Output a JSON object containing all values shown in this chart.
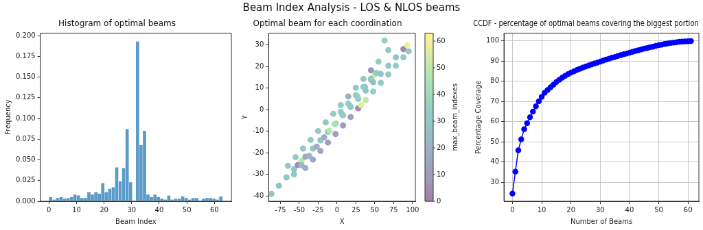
{
  "chart_data": [
    {
      "type": "histogram",
      "title": "Histogram of optimal beams",
      "xlabel": "Beam Index",
      "ylabel": "Frequency",
      "annotations": [
        "Beam Index Analysis - LOS & NLOS beams"
      ],
      "color": "#5a9bc9",
      "bins": [
        0,
        1.26,
        2.52,
        3.78,
        5.04,
        6.3,
        7.56,
        8.82,
        10.08,
        11.34,
        12.6,
        13.86,
        15.12,
        16.38,
        17.64,
        18.9,
        20.16,
        21.42,
        22.68,
        23.94,
        25.2,
        26.46,
        27.72,
        28.98,
        30.24,
        31.5,
        32.76,
        34.02,
        35.28,
        36.54,
        37.8,
        39.06,
        40.32,
        41.58,
        42.84,
        44.1,
        45.36,
        46.62,
        47.88,
        49.14,
        50.4,
        51.66,
        52.92,
        54.18,
        55.44,
        56.7,
        57.96,
        59.22,
        60.48,
        61.74,
        63
      ],
      "values": [
        0.005,
        0.002,
        0.004,
        0.005,
        0.003,
        0.004,
        0.005,
        0.008,
        0.007,
        0.004,
        0.004,
        0.011,
        0.008,
        0.011,
        0.009,
        0.022,
        0.011,
        0.015,
        0.017,
        0.041,
        0.024,
        0.04,
        0.087,
        0.023,
        0,
        0.193,
        0.068,
        0.085,
        0.008,
        0.005,
        0.008,
        0.005,
        0.003,
        0.002,
        0.007,
        0.002,
        0.003,
        0.003,
        0.006,
        0.004,
        0.002,
        0.004,
        0.004,
        0.001,
        0.003,
        0.004,
        0.004,
        0.003,
        0.002,
        0.006
      ],
      "xlim": [
        -3.15,
        66.15
      ],
      "xticks": [
        0,
        10,
        20,
        30,
        40,
        50,
        60
      ],
      "ylim": [
        0,
        0.203
      ],
      "yticks": [
        {
          "value": 0,
          "label": "0.000"
        },
        {
          "value": 0.025,
          "label": "0.025"
        },
        {
          "value": 0.05,
          "label": "0.050"
        },
        {
          "value": 0.075,
          "label": "0.075"
        },
        {
          "value": 0.1,
          "label": "0.100"
        },
        {
          "value": 0.125,
          "label": "0.125"
        },
        {
          "value": 0.15,
          "label": "0.150"
        },
        {
          "value": 0.175,
          "label": "0.175"
        },
        {
          "value": 0.2,
          "label": "0.200"
        }
      ]
    },
    {
      "type": "scatter",
      "title": "Optimal beam for each coordination",
      "xlabel": "X",
      "ylabel": "Y",
      "clabel": "max_beam_indexes",
      "clim": [
        0,
        63
      ],
      "cticks": [
        0,
        10,
        20,
        30,
        40,
        50,
        60
      ],
      "x": [
        -65,
        -55,
        -45,
        -35,
        -25,
        -15,
        -5,
        5,
        15,
        25,
        35,
        45,
        55,
        68,
        -87,
        -77,
        -67,
        -57,
        -52,
        -47,
        -42,
        -32,
        -22,
        -12,
        -2,
        8,
        18,
        28,
        38,
        48,
        58,
        68,
        78,
        88,
        93,
        -57,
        -47,
        -37,
        -27,
        -17,
        -10,
        -3,
        7,
        17,
        27,
        37,
        45,
        50,
        -42,
        -32,
        -22,
        -12,
        -2,
        8,
        18,
        28,
        32,
        38,
        48,
        58,
        68,
        78,
        88,
        95,
        5,
        15,
        25,
        35,
        45,
        52,
        63
      ],
      "values": [
        -26,
        -22,
        -18,
        -14,
        -9.9,
        -5.9,
        -1.9,
        2.1,
        6.1,
        10.1,
        14.2,
        18.2,
        22.2,
        27.5,
        -39,
        -35.2,
        -31.3,
        -27.5,
        -25.6,
        -23.7,
        -21.8,
        -18,
        -14.2,
        -10.3,
        -6.5,
        -2.6,
        1.2,
        5,
        8.8,
        12.7,
        16.5,
        20.3,
        24.2,
        28,
        29.9,
        -30,
        -25.7,
        -21.4,
        -17.1,
        -12.8,
        -9.8,
        -6.8,
        -2.4,
        1.9,
        6.2,
        10.5,
        14,
        16.1,
        -27,
        -23.1,
        -19.1,
        -15.2,
        -11.3,
        -7.3,
        -3.4,
        0.6,
        2.1,
        4.5,
        8.4,
        12.4,
        16.3,
        20.3,
        24.2,
        27,
        -1,
        2.8,
        6.7,
        10.5,
        14.3,
        17,
        32
      ],
      "cvalues": [
        33,
        33,
        33,
        33,
        33,
        33,
        33,
        33,
        20,
        33,
        33,
        8,
        33,
        33,
        30,
        30,
        30,
        30,
        5,
        50,
        15,
        30,
        30,
        30,
        30,
        30,
        30,
        30,
        30,
        30,
        30,
        30,
        30,
        3,
        60,
        30,
        25,
        22,
        20,
        18,
        48,
        45,
        35,
        32,
        40,
        32,
        5,
        55,
        18,
        15,
        14,
        12,
        12,
        12,
        12,
        5,
        58,
        50,
        35,
        33,
        33,
        33,
        33,
        33,
        33,
        33,
        33,
        33,
        33,
        33,
        35
      ],
      "xlim": [
        -90.6,
        103.8
      ],
      "xticks": [
        -75,
        -50,
        -25,
        0,
        25,
        50,
        75,
        100
      ],
      "ylim": [
        -42.4,
        35.4
      ],
      "yticks": [
        -40,
        -30,
        -20,
        -10,
        0,
        10,
        20,
        30
      ]
    },
    {
      "type": "line",
      "title": "CCDF - percentage of optimal beams covering the biggest portion",
      "xlabel": "Number of Beams",
      "ylabel": "Percentage Coverage",
      "color": "#0000ff",
      "marker": "circle",
      "grid": true,
      "x": [
        0,
        1,
        2,
        3,
        4,
        5,
        6,
        7,
        8,
        9,
        10,
        11,
        12,
        13,
        14,
        15,
        16,
        17,
        18,
        19,
        20,
        21,
        22,
        23,
        24,
        25,
        26,
        27,
        28,
        29,
        30,
        31,
        32,
        33,
        34,
        35,
        36,
        37,
        38,
        39,
        40,
        41,
        42,
        43,
        44,
        45,
        46,
        47,
        48,
        49,
        50,
        51,
        52,
        53,
        54,
        55,
        56,
        57,
        58,
        59,
        60,
        61
      ],
      "values": [
        24.3,
        35.2,
        45.8,
        51.2,
        56.2,
        59.2,
        62.2,
        65,
        67.6,
        70.1,
        72.3,
        74.3,
        75.7,
        77,
        78.3,
        79.7,
        80.8,
        81.8,
        82.7,
        83.6,
        84.3,
        84.9,
        85.6,
        86.2,
        86.8,
        87.3,
        87.8,
        88.3,
        88.8,
        89.3,
        89.8,
        90.3,
        90.8,
        91.2,
        91.7,
        92.1,
        92.6,
        93,
        93.4,
        93.8,
        94.2,
        94.6,
        95,
        95.4,
        95.8,
        96.2,
        96.5,
        96.9,
        97.2,
        97.6,
        97.9,
        98.2,
        98.5,
        98.8,
        99,
        99.2,
        99.4,
        99.6,
        99.7,
        99.8,
        99.9,
        100
      ],
      "xlim": [
        -2.9,
        63.7
      ],
      "xticks": [
        0,
        10,
        20,
        30,
        40,
        50,
        60
      ],
      "ylim": [
        20.5,
        103.9
      ],
      "yticks": [
        30,
        40,
        50,
        60,
        70,
        80,
        90,
        100
      ]
    }
  ]
}
